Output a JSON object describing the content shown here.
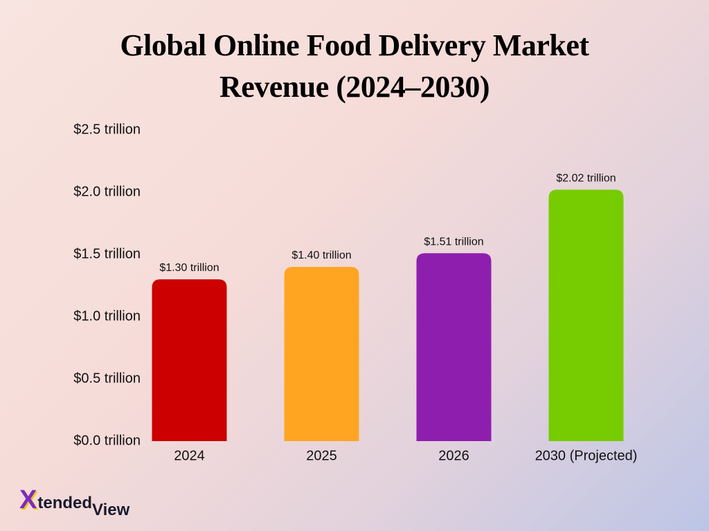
{
  "chart_data": {
    "type": "bar",
    "title": "Global Online Food Delivery Market Revenue (2024–2030)",
    "categories": [
      "2024",
      "2025",
      "2026",
      "2030 (Projected)"
    ],
    "values": [
      1.3,
      1.4,
      1.51,
      2.02
    ],
    "value_labels": [
      "$1.30 trillion",
      "$1.40 trillion",
      "$1.51 trillion",
      "$2.02 trillion"
    ],
    "colors": [
      "#cc0000",
      "#ffa522",
      "#8e1fae",
      "#76cc00"
    ],
    "ylim": [
      0,
      2.5
    ],
    "yticks": [
      {
        "value": 0,
        "label": "$0.0 trillion"
      },
      {
        "value": 0.5,
        "label": "$0.5 trillion"
      },
      {
        "value": 1.0,
        "label": "$1.0 trillion"
      },
      {
        "value": 1.5,
        "label": "$1.5 trillion"
      },
      {
        "value": 2.0,
        "label": "$2.0 trillion"
      },
      {
        "value": 2.5,
        "label": "$2.5 trillion"
      }
    ],
    "grid": false
  },
  "brand": {
    "mark": "X",
    "word1": "tended",
    "word2": "View"
  }
}
